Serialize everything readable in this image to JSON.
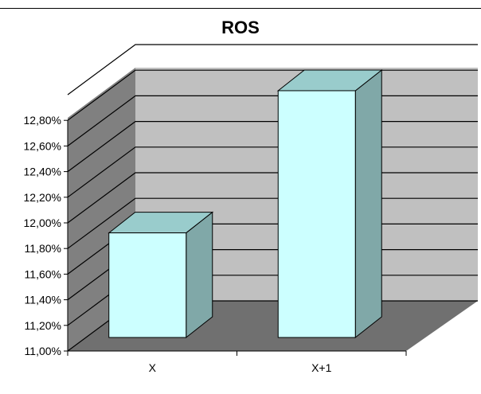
{
  "chart_data": {
    "type": "bar",
    "title": "ROS",
    "xlabel": "",
    "ylabel": "",
    "categories": [
      "X",
      "X+1"
    ],
    "values": [
      11.78,
      12.84
    ],
    "ylim": [
      11.0,
      12.8
    ],
    "yticks": [
      "11,00%",
      "11,20%",
      "11,40%",
      "11,60%",
      "11,80%",
      "12,00%",
      "12,20%",
      "12,40%",
      "12,60%",
      "12,80%"
    ],
    "grid": true,
    "legend": "none",
    "style": "3d-column"
  },
  "colors": {
    "bar_front": "#ccffff",
    "bar_top": "#99cccc",
    "bar_side": "#80a8a8",
    "back_wall": "#c0c0c0",
    "side_wall": "#808080",
    "floor": "#707070",
    "gridline": "#000000"
  }
}
